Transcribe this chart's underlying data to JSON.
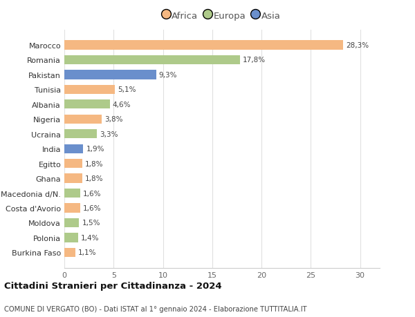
{
  "categories": [
    "Burkina Faso",
    "Polonia",
    "Moldova",
    "Costa d'Avorio",
    "Macedonia d/N.",
    "Ghana",
    "Egitto",
    "India",
    "Ucraina",
    "Nigeria",
    "Albania",
    "Tunisia",
    "Pakistan",
    "Romania",
    "Marocco"
  ],
  "values": [
    1.1,
    1.4,
    1.5,
    1.6,
    1.6,
    1.8,
    1.8,
    1.9,
    3.3,
    3.8,
    4.6,
    5.1,
    9.3,
    17.8,
    28.3
  ],
  "labels": [
    "1,1%",
    "1,4%",
    "1,5%",
    "1,6%",
    "1,6%",
    "1,8%",
    "1,8%",
    "1,9%",
    "3,3%",
    "3,8%",
    "4,6%",
    "5,1%",
    "9,3%",
    "17,8%",
    "28,3%"
  ],
  "continents": [
    "Africa",
    "Europa",
    "Europa",
    "Africa",
    "Europa",
    "Africa",
    "Africa",
    "Asia",
    "Europa",
    "Africa",
    "Europa",
    "Africa",
    "Asia",
    "Europa",
    "Africa"
  ],
  "colors": {
    "Africa": "#F5B882",
    "Europa": "#AECA8A",
    "Asia": "#6A8FCC"
  },
  "legend_labels": [
    "Africa",
    "Europa",
    "Asia"
  ],
  "legend_colors": [
    "#F5B882",
    "#AECA8A",
    "#6A8FCC"
  ],
  "title": "Cittadini Stranieri per Cittadinanza - 2024",
  "subtitle": "COMUNE DI VERGATO (BO) - Dati ISTAT al 1° gennaio 2024 - Elaborazione TUTTITALIA.IT",
  "xlim": [
    0,
    32
  ],
  "xticks": [
    0,
    5,
    10,
    15,
    20,
    25,
    30
  ],
  "background_color": "#ffffff",
  "grid_color": "#e0e0e0",
  "bar_height": 0.62
}
